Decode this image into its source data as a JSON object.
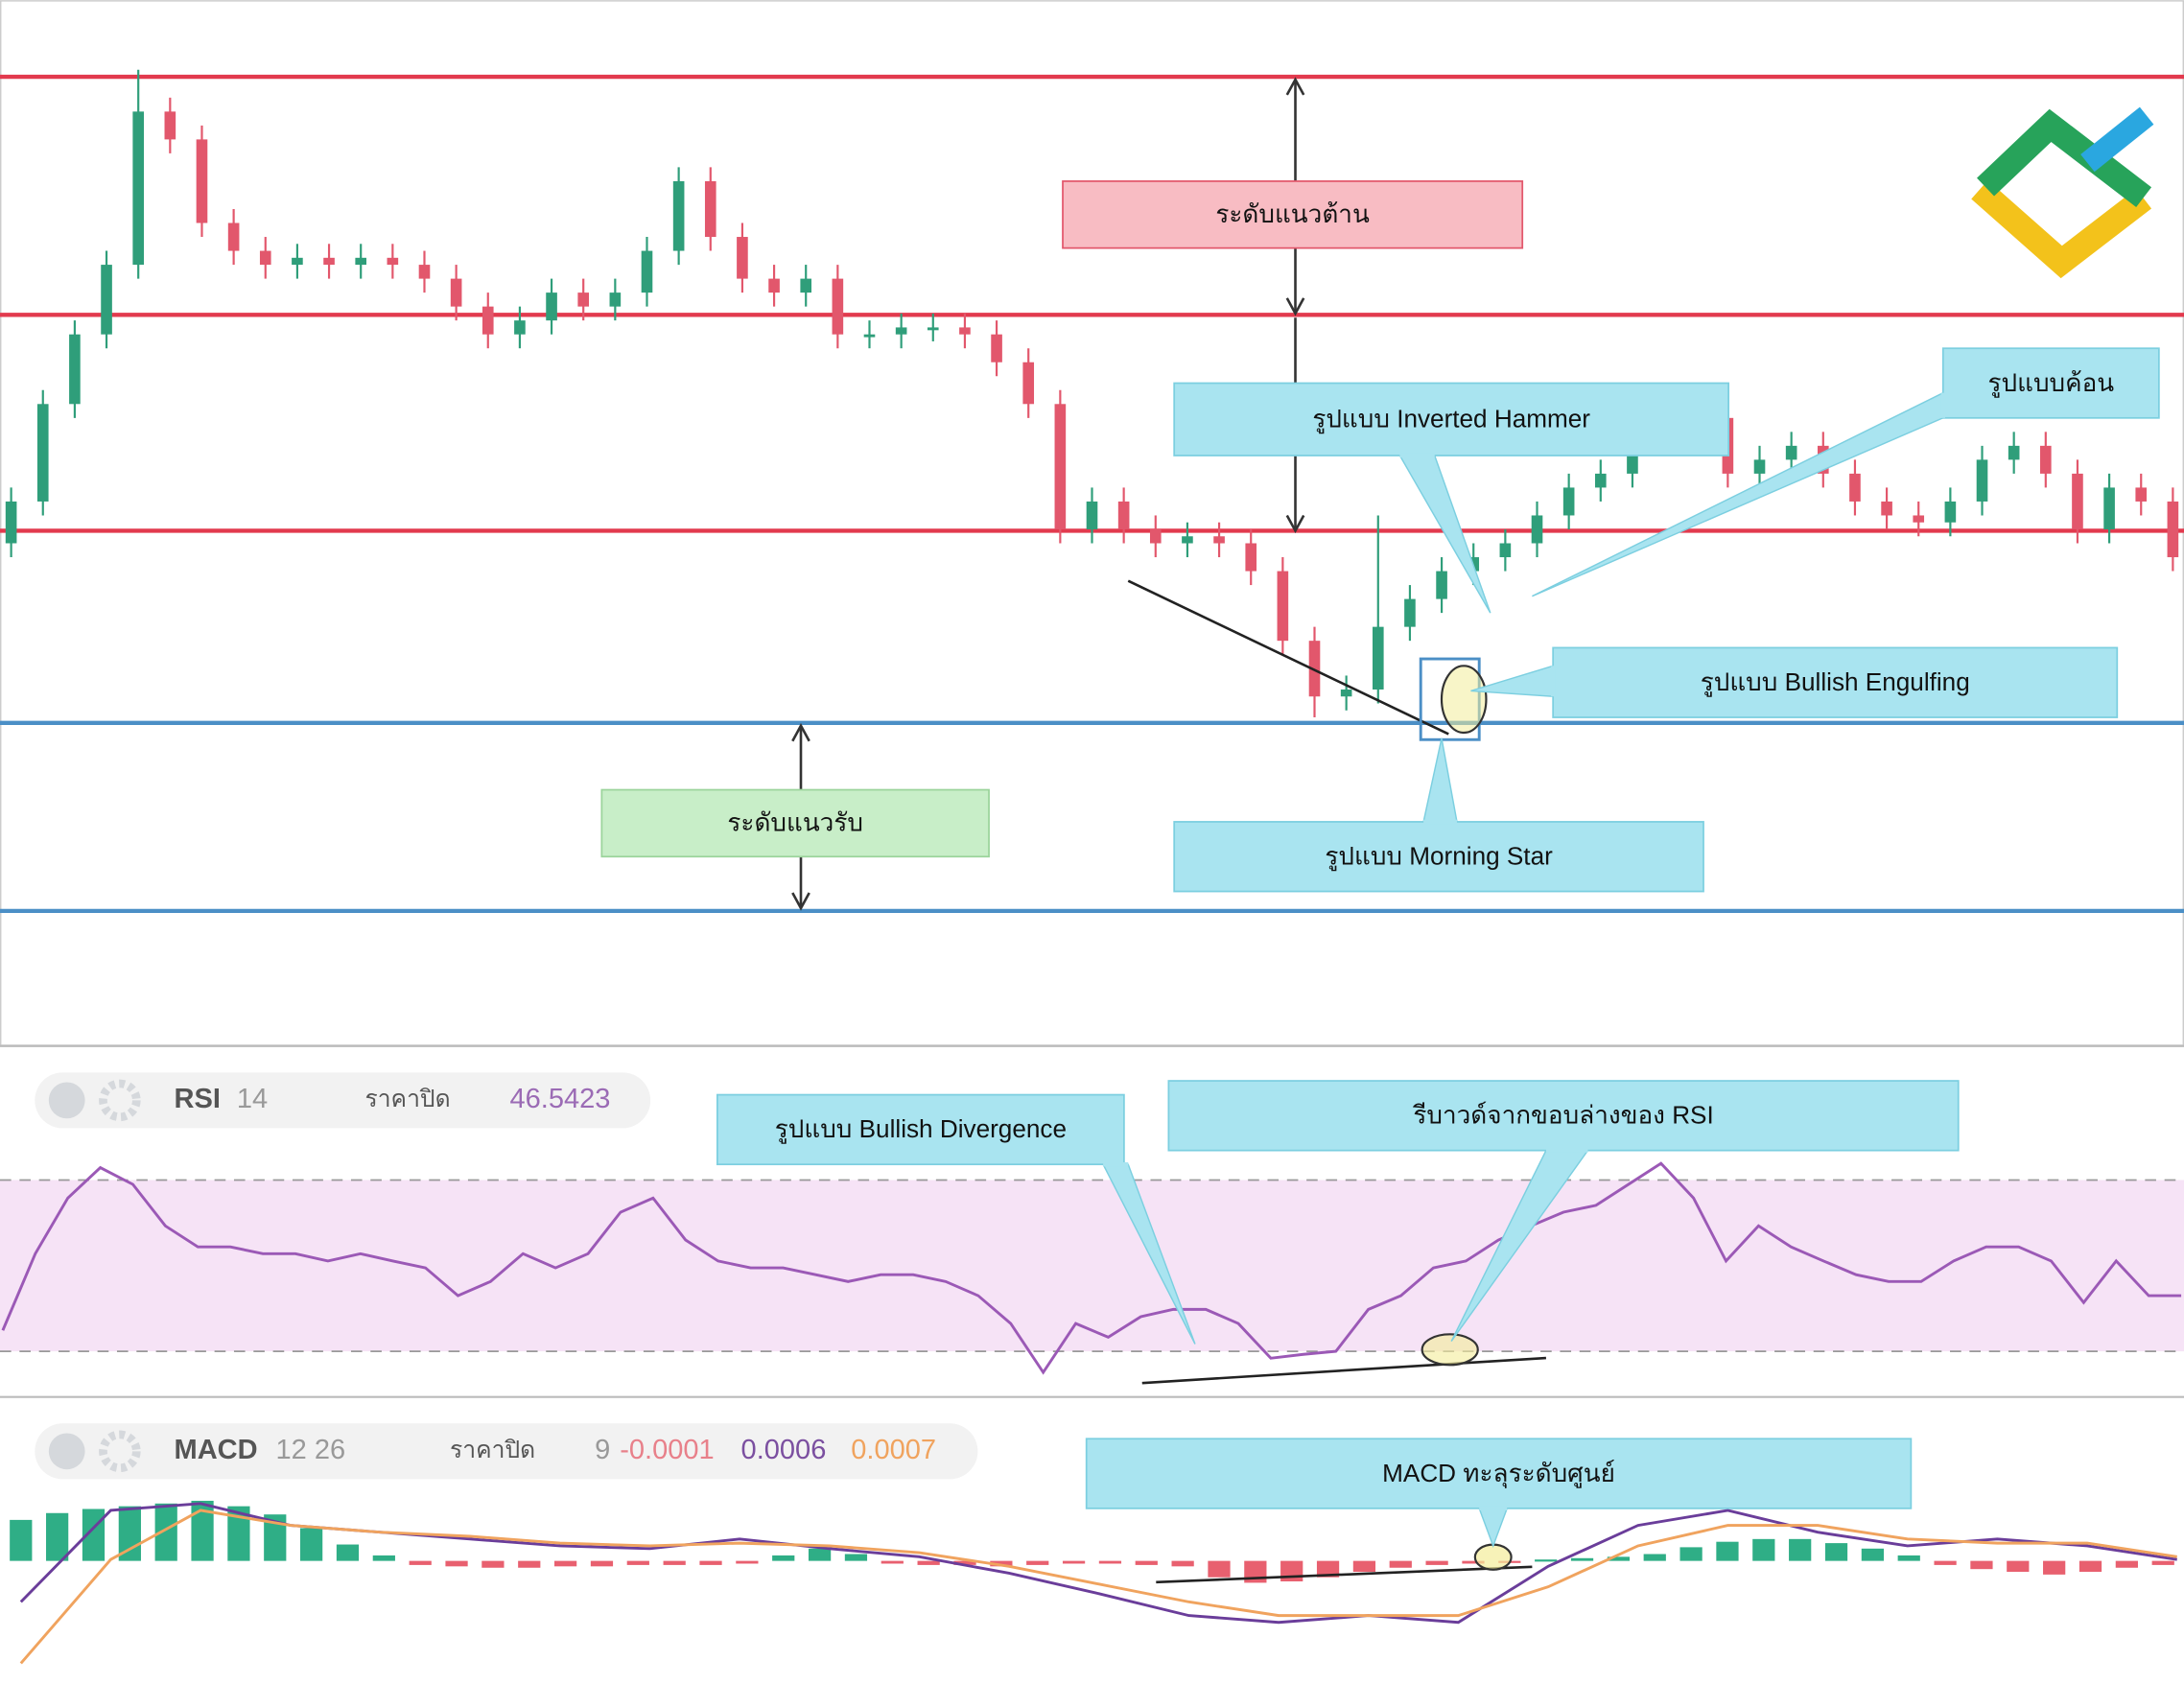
{
  "price_chart": {
    "open": [
      36,
      39,
      46,
      51,
      56,
      67,
      65,
      59,
      57,
      56,
      56.5,
      56,
      56.5,
      56,
      55,
      53,
      51,
      52,
      54,
      53,
      54,
      57,
      62,
      58,
      55,
      54,
      55,
      51,
      51,
      51.5,
      51.5,
      51,
      49,
      46,
      37,
      39,
      37,
      36,
      36.5,
      36,
      34,
      29,
      25,
      25.5,
      30,
      32,
      34,
      35,
      36,
      38,
      40,
      41,
      44,
      46,
      45,
      41,
      42,
      43,
      41,
      39,
      38,
      37.5,
      39,
      42,
      43,
      41,
      37,
      40,
      39
    ],
    "high": [
      40,
      47,
      52,
      57,
      70,
      68,
      66,
      60,
      58,
      57.5,
      57.5,
      57.5,
      57.5,
      57,
      56,
      54,
      53,
      55,
      55,
      55,
      58,
      63,
      63,
      59,
      56,
      56,
      56,
      52,
      52.5,
      52.5,
      52.5,
      52,
      50,
      47,
      40,
      40,
      38,
      37.5,
      37.5,
      37,
      35,
      30,
      26.5,
      38,
      33,
      35,
      36,
      37,
      39,
      41,
      42,
      45,
      47,
      47,
      46,
      43,
      44,
      44,
      42,
      40,
      39,
      40,
      43,
      44,
      44,
      42,
      41,
      41,
      40
    ],
    "low": [
      35,
      38,
      45,
      50,
      55,
      64,
      58,
      56,
      55,
      55,
      55,
      55,
      55,
      54,
      52,
      50,
      50,
      51,
      52,
      52,
      53,
      56,
      57,
      54,
      53,
      53,
      50,
      50,
      50,
      50.5,
      50,
      48,
      45,
      36,
      36,
      36,
      35,
      35,
      35,
      33,
      28,
      23.5,
      24,
      24.5,
      29,
      31,
      33,
      34,
      35,
      37,
      39,
      40,
      43,
      44,
      40,
      40,
      41,
      40,
      38,
      37,
      36.5,
      36.5,
      38,
      41,
      40,
      36,
      36,
      38,
      34
    ],
    "close": [
      39,
      46,
      51,
      56,
      67,
      65,
      59,
      57,
      56,
      56.5,
      56,
      56.5,
      56,
      55,
      53,
      51,
      52,
      54,
      53,
      54,
      57,
      62,
      58,
      55,
      54,
      55,
      51,
      51,
      51.5,
      51.5,
      51,
      49,
      46,
      37,
      39,
      37,
      36,
      36.5,
      36,
      34,
      29,
      25,
      25.5,
      30,
      32,
      34,
      35,
      36,
      38,
      40,
      41,
      44,
      46,
      45,
      41,
      42,
      43,
      41,
      39,
      38,
      37.5,
      39,
      42,
      43,
      41,
      37,
      40,
      39,
      35
    ],
    "ylim": [
      0,
      75
    ],
    "up_color": "#2f9e7a",
    "down_color": "#e2576c",
    "resistance_levels": [
      69.5,
      52.4,
      36.9
    ],
    "support_levels": [
      23.1,
      9.6
    ],
    "resistance_color": "#e23a4e",
    "support_color": "#4b8fc6"
  },
  "annotations": {
    "resistance": "ระดับแนวต้าน",
    "support": "ระดับแนวรับ",
    "inverted_hammer": "รูปแบบ Inverted Hammer",
    "hammer": "รูปแบบค้อน",
    "bullish_engulfing": "รูปแบบ Bullish Engulfing",
    "morning_star": "รูปแบบ Morning Star",
    "bullish_divergence": "รูปแบบ Bullish Divergence",
    "rsi_rebound": "รีบาวด์จากขอบล่างของ RSI",
    "macd_cross": "MACD ทะลุระดับศูนย์"
  },
  "rsi": {
    "name": "RSI",
    "period": 14,
    "source": "ราคาปิด",
    "value": 46.5423,
    "values": [
      34.9,
      52.8,
      65.8,
      72.9,
      69.0,
      59.3,
      54.4,
      54.4,
      52.8,
      52.8,
      51.1,
      52.8,
      51.1,
      49.5,
      43.0,
      46.3,
      52.8,
      49.5,
      52.8,
      62.5,
      65.8,
      56.0,
      51.1,
      49.5,
      49.5,
      47.9,
      46.3,
      47.9,
      47.9,
      46.3,
      43.0,
      36.5,
      25.1,
      36.5,
      33.3,
      38.1,
      39.8,
      39.8,
      36.5,
      28.4,
      29.3,
      30.0,
      39.8,
      43.0,
      49.5,
      51.1,
      56.0,
      59.3,
      62.5,
      64.1,
      69.0,
      73.9,
      65.8,
      51.1,
      59.3,
      54.4,
      51.1,
      47.9,
      46.3,
      46.3,
      51.1,
      54.4,
      54.4,
      51.1,
      41.4,
      51.1,
      43.0,
      43.0
    ],
    "ylim": [
      20,
      100
    ],
    "levels": [
      30,
      70
    ],
    "color": "#9b59b6"
  },
  "macd": {
    "name": "MACD",
    "periods": "12 26",
    "source": "ราคาปิด",
    "signal_period": 9,
    "histogram_value": -0.0001,
    "macd_value": 0.0006,
    "signal_value": 0.0007,
    "histogram": [
      0.0003,
      0.00035,
      0.00038,
      0.0004,
      0.00042,
      0.00044,
      0.0004,
      0.00034,
      0.00024,
      0.00012,
      4e-05,
      -3e-05,
      -4e-05,
      -5e-05,
      -5e-05,
      -4e-05,
      -4e-05,
      -3e-05,
      -3e-05,
      -3e-05,
      -2e-05,
      4e-05,
      9e-05,
      5e-05,
      -2e-05,
      -3e-05,
      -3e-05,
      -4e-05,
      -3e-05,
      -2e-05,
      -2e-05,
      -3e-05,
      -4e-05,
      -0.00012,
      -0.00016,
      -0.00015,
      -0.00012,
      -8e-05,
      -5e-05,
      -3e-05,
      -2e-05,
      -1e-05,
      1e-05,
      2e-05,
      3e-05,
      5e-05,
      0.0001,
      0.00014,
      0.00016,
      0.00016,
      0.00013,
      9e-05,
      4e-05,
      -3e-05,
      -6e-05,
      -8e-05,
      -0.0001,
      -8e-05,
      -5e-05,
      -3e-05
    ],
    "macd_line": [
      -0.0003,
      0.00037,
      0.00042,
      0.00026,
      0.00021,
      0.00016,
      0.00011,
      9e-05,
      0.00016,
      9e-05,
      3e-05,
      -9e-05,
      -0.00024,
      -0.0004,
      -0.00045,
      -0.0004,
      -0.00045,
      -4e-05,
      0.00026,
      0.00037,
      0.00021,
      0.00011,
      0.00016,
      0.00011,
      1e-05
    ],
    "signal_line": [
      -0.00075,
      1e-05,
      0.00037,
      0.00026,
      0.00021,
      0.00018,
      0.00013,
      0.00011,
      0.00013,
      0.00011,
      6e-05,
      -4e-05,
      -0.00017,
      -0.0003,
      -0.0004,
      -0.0004,
      -0.0004,
      -0.00019,
      0.00011,
      0.00026,
      0.00026,
      0.00016,
      0.00013,
      0.00013,
      3e-05
    ],
    "ylim": [
      -0.0009,
      0.0012
    ],
    "macd_color": "#6a3d9a",
    "signal_color": "#f0a35e",
    "pos_color": "#2fae86",
    "neg_color": "#e8606f"
  }
}
